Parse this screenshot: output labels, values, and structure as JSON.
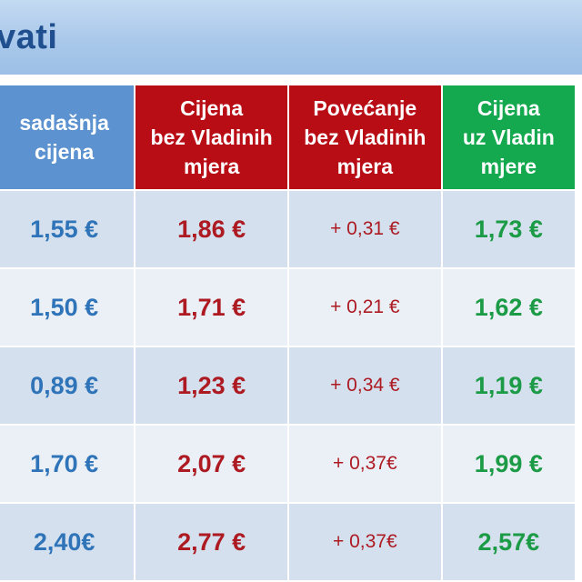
{
  "title": "vati",
  "headers": {
    "current": [
      "sadašnja",
      "cijena"
    ],
    "no_measures": [
      "Cijena",
      "bez Vladinih",
      "mjera"
    ],
    "increase": [
      "Povećanje",
      "bez Vladinih",
      "mjera"
    ],
    "with_measures": [
      "Cijena",
      "uz Vladin",
      "mjere"
    ]
  },
  "rows": [
    {
      "current": "1,55 €",
      "no_measures": "1,86 €",
      "increase": "+ 0,31 €",
      "with_measures": "1,73 €"
    },
    {
      "current": "1,50 €",
      "no_measures": "1,71 €",
      "increase": "+ 0,21 €",
      "with_measures": "1,62 €"
    },
    {
      "current": "0,89 €",
      "no_measures": "1,23 €",
      "increase": "+ 0,34 €",
      "with_measures": "1,19 €"
    },
    {
      "current": "1,70 €",
      "no_measures": "2,07 €",
      "increase": "+ 0,37€",
      "with_measures": "1,99 €"
    },
    {
      "current": "2,40€",
      "no_measures": "2,77 €",
      "increase": "+ 0,37€",
      "with_measures": "2,57€"
    }
  ]
}
